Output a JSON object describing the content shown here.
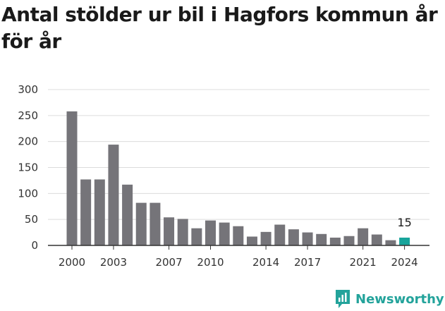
{
  "title": "Antal stölder ur bil i Hagfors kommun år för år",
  "brand": {
    "name": "Newsworthy",
    "icon": "newsworthy-logo-icon"
  },
  "colors": {
    "bar": "#757479",
    "highlight": "#18a49b",
    "grid": "#dcdcdc",
    "axis": "#333333"
  },
  "chart_data": {
    "type": "bar",
    "title": "Antal stölder ur bil i Hagfors kommun år för år",
    "xlabel": "",
    "ylabel": "",
    "ylim": [
      0,
      300
    ],
    "yticks": [
      0,
      50,
      100,
      150,
      200,
      250,
      300
    ],
    "grid": true,
    "categories": [
      "2000",
      "2001",
      "2002",
      "2003",
      "2004",
      "2005",
      "2006",
      "2007",
      "2008",
      "2009",
      "2010",
      "2011",
      "2012",
      "2013",
      "2014",
      "2015",
      "2016",
      "2017",
      "2018",
      "2019",
      "2020",
      "2021",
      "2022",
      "2023",
      "2024"
    ],
    "values": [
      258,
      127,
      127,
      194,
      117,
      82,
      82,
      54,
      51,
      33,
      48,
      44,
      37,
      17,
      26,
      40,
      31,
      25,
      22,
      15,
      18,
      33,
      21,
      10,
      15
    ],
    "xtick_labels": [
      "2000",
      "2003",
      "2007",
      "2010",
      "2014",
      "2017",
      "2021",
      "2024"
    ],
    "highlight": {
      "category": "2024",
      "label": "15"
    }
  }
}
